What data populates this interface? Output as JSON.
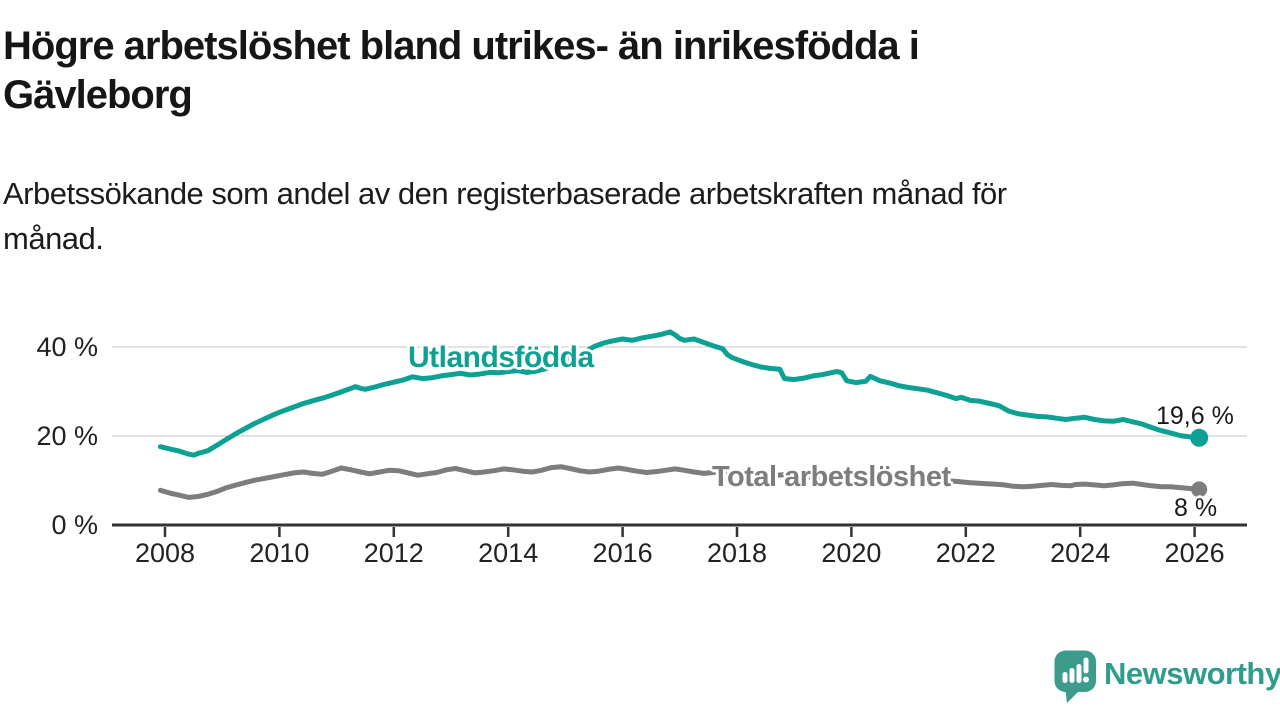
{
  "header": {
    "title_lines": [
      "Högre arbetslöshet bland utrikes- än inrikesfödda i",
      "Gävleborg"
    ],
    "subtitle_lines": [
      "Arbetssökande som andel av den registerbaserade arbetskraften månad för",
      "månad."
    ]
  },
  "chart_data": {
    "type": "line",
    "title": "Högre arbetslöshet bland utrikes- än inrikesfödda i Gävleborg",
    "subtitle": "Arbetssökande som andel av den registerbaserade arbetskraften månad för månad.",
    "unit": "%",
    "grid": "horizontal",
    "legend_position": "inline-labels",
    "x_axis": {
      "range": [
        2007.05,
        2026.95
      ],
      "ticks": [
        2008,
        2010,
        2012,
        2014,
        2016,
        2018,
        2020,
        2022,
        2024,
        2026
      ]
    },
    "y_axis": {
      "range": [
        0,
        46
      ],
      "tick_values": [
        40,
        20,
        0
      ],
      "tick_labels": [
        "40 %",
        "20 %",
        "0 %"
      ],
      "gridlines": [
        40,
        20
      ]
    },
    "colors": {
      "axis": "#333333",
      "grid": "#d9d9d9",
      "text": "#222222"
    },
    "series": [
      {
        "name": "Utlandsfödda",
        "color": "#0ca192",
        "end_label": "19,6 %",
        "end_value": 19.6,
        "points": [
          [
            2007.92,
            17.6
          ],
          [
            2008.08,
            17.1
          ],
          [
            2008.25,
            16.6
          ],
          [
            2008.42,
            15.9
          ],
          [
            2008.5,
            15.7
          ],
          [
            2008.58,
            16.1
          ],
          [
            2008.75,
            16.7
          ],
          [
            2008.92,
            18.0
          ],
          [
            2009.08,
            19.3
          ],
          [
            2009.25,
            20.6
          ],
          [
            2009.42,
            21.8
          ],
          [
            2009.58,
            22.9
          ],
          [
            2009.75,
            23.9
          ],
          [
            2009.92,
            24.9
          ],
          [
            2010.08,
            25.7
          ],
          [
            2010.25,
            26.5
          ],
          [
            2010.42,
            27.3
          ],
          [
            2010.58,
            27.9
          ],
          [
            2010.75,
            28.5
          ],
          [
            2010.92,
            29.2
          ],
          [
            2011.08,
            29.9
          ],
          [
            2011.25,
            30.7
          ],
          [
            2011.33,
            31.1
          ],
          [
            2011.42,
            30.7
          ],
          [
            2011.5,
            30.5
          ],
          [
            2011.67,
            31.0
          ],
          [
            2011.83,
            31.6
          ],
          [
            2012.0,
            32.1
          ],
          [
            2012.17,
            32.6
          ],
          [
            2012.33,
            33.3
          ],
          [
            2012.5,
            32.9
          ],
          [
            2012.67,
            33.1
          ],
          [
            2012.83,
            33.5
          ],
          [
            2013.0,
            33.8
          ],
          [
            2013.17,
            34.1
          ],
          [
            2013.33,
            33.7
          ],
          [
            2013.5,
            33.9
          ],
          [
            2013.67,
            34.3
          ],
          [
            2013.83,
            34.2
          ],
          [
            2014.0,
            34.5
          ],
          [
            2014.17,
            34.7
          ],
          [
            2014.33,
            34.3
          ],
          [
            2014.5,
            34.6
          ],
          [
            2014.67,
            35.2
          ],
          [
            2014.83,
            35.9
          ],
          [
            2015.0,
            36.7
          ],
          [
            2015.17,
            37.7
          ],
          [
            2015.33,
            38.8
          ],
          [
            2015.5,
            40.1
          ],
          [
            2015.67,
            40.9
          ],
          [
            2015.83,
            41.4
          ],
          [
            2016.0,
            41.8
          ],
          [
            2016.17,
            41.5
          ],
          [
            2016.33,
            42.0
          ],
          [
            2016.5,
            42.4
          ],
          [
            2016.67,
            42.8
          ],
          [
            2016.83,
            43.4
          ],
          [
            2016.92,
            42.7
          ],
          [
            2017.0,
            41.9
          ],
          [
            2017.08,
            41.5
          ],
          [
            2017.25,
            41.8
          ],
          [
            2017.42,
            41.0
          ],
          [
            2017.58,
            40.3
          ],
          [
            2017.75,
            39.6
          ],
          [
            2017.83,
            38.3
          ],
          [
            2017.92,
            37.6
          ],
          [
            2018.08,
            36.8
          ],
          [
            2018.25,
            36.1
          ],
          [
            2018.42,
            35.5
          ],
          [
            2018.58,
            35.2
          ],
          [
            2018.75,
            35.0
          ],
          [
            2018.83,
            32.9
          ],
          [
            2019.0,
            32.7
          ],
          [
            2019.17,
            33.0
          ],
          [
            2019.33,
            33.5
          ],
          [
            2019.5,
            33.8
          ],
          [
            2019.67,
            34.3
          ],
          [
            2019.75,
            34.5
          ],
          [
            2019.83,
            34.2
          ],
          [
            2019.92,
            32.4
          ],
          [
            2020.08,
            32.0
          ],
          [
            2020.25,
            32.3
          ],
          [
            2020.33,
            33.4
          ],
          [
            2020.5,
            32.4
          ],
          [
            2020.67,
            31.9
          ],
          [
            2020.83,
            31.3
          ],
          [
            2021.0,
            30.9
          ],
          [
            2021.17,
            30.6
          ],
          [
            2021.33,
            30.3
          ],
          [
            2021.5,
            29.7
          ],
          [
            2021.67,
            29.1
          ],
          [
            2021.83,
            28.4
          ],
          [
            2021.92,
            28.7
          ],
          [
            2022.08,
            28.0
          ],
          [
            2022.25,
            27.8
          ],
          [
            2022.42,
            27.3
          ],
          [
            2022.58,
            26.8
          ],
          [
            2022.75,
            25.6
          ],
          [
            2022.92,
            25.0
          ],
          [
            2023.08,
            24.7
          ],
          [
            2023.25,
            24.4
          ],
          [
            2023.42,
            24.3
          ],
          [
            2023.58,
            24.0
          ],
          [
            2023.75,
            23.7
          ],
          [
            2023.92,
            24.0
          ],
          [
            2024.08,
            24.2
          ],
          [
            2024.25,
            23.7
          ],
          [
            2024.42,
            23.4
          ],
          [
            2024.58,
            23.3
          ],
          [
            2024.75,
            23.7
          ],
          [
            2024.92,
            23.2
          ],
          [
            2025.08,
            22.7
          ],
          [
            2025.25,
            21.9
          ],
          [
            2025.42,
            21.2
          ],
          [
            2025.58,
            20.7
          ],
          [
            2025.75,
            20.1
          ],
          [
            2025.92,
            19.8
          ],
          [
            2026.08,
            19.6
          ]
        ]
      },
      {
        "name": "Total arbetslöshet",
        "color": "#7d7d7d",
        "end_label": "8 %",
        "end_value": 8,
        "points": [
          [
            2007.92,
            7.8
          ],
          [
            2008.08,
            7.2
          ],
          [
            2008.25,
            6.7
          ],
          [
            2008.42,
            6.2
          ],
          [
            2008.58,
            6.4
          ],
          [
            2008.75,
            6.9
          ],
          [
            2008.92,
            7.6
          ],
          [
            2009.08,
            8.4
          ],
          [
            2009.25,
            9.0
          ],
          [
            2009.42,
            9.6
          ],
          [
            2009.58,
            10.1
          ],
          [
            2009.75,
            10.5
          ],
          [
            2009.92,
            10.9
          ],
          [
            2010.08,
            11.3
          ],
          [
            2010.25,
            11.7
          ],
          [
            2010.42,
            11.9
          ],
          [
            2010.58,
            11.6
          ],
          [
            2010.75,
            11.4
          ],
          [
            2010.92,
            12.1
          ],
          [
            2011.08,
            12.8
          ],
          [
            2011.25,
            12.4
          ],
          [
            2011.42,
            11.9
          ],
          [
            2011.58,
            11.5
          ],
          [
            2011.75,
            11.9
          ],
          [
            2011.92,
            12.3
          ],
          [
            2012.08,
            12.2
          ],
          [
            2012.25,
            11.7
          ],
          [
            2012.42,
            11.2
          ],
          [
            2012.58,
            11.5
          ],
          [
            2012.75,
            11.8
          ],
          [
            2012.92,
            12.4
          ],
          [
            2013.08,
            12.7
          ],
          [
            2013.25,
            12.2
          ],
          [
            2013.42,
            11.7
          ],
          [
            2013.58,
            11.9
          ],
          [
            2013.75,
            12.2
          ],
          [
            2013.92,
            12.6
          ],
          [
            2014.08,
            12.4
          ],
          [
            2014.25,
            12.1
          ],
          [
            2014.42,
            11.9
          ],
          [
            2014.58,
            12.3
          ],
          [
            2014.75,
            12.9
          ],
          [
            2014.92,
            13.1
          ],
          [
            2015.08,
            12.7
          ],
          [
            2015.25,
            12.2
          ],
          [
            2015.42,
            11.9
          ],
          [
            2015.58,
            12.1
          ],
          [
            2015.75,
            12.5
          ],
          [
            2015.92,
            12.8
          ],
          [
            2016.08,
            12.5
          ],
          [
            2016.25,
            12.1
          ],
          [
            2016.42,
            11.8
          ],
          [
            2016.58,
            12.0
          ],
          [
            2016.75,
            12.3
          ],
          [
            2016.92,
            12.6
          ],
          [
            2017.08,
            12.3
          ],
          [
            2017.25,
            11.9
          ],
          [
            2017.42,
            11.6
          ],
          [
            2017.58,
            11.8
          ],
          [
            2017.75,
            12.0
          ],
          [
            2017.92,
            12.2
          ],
          [
            2018.08,
            11.9
          ],
          [
            2018.33,
            11.3
          ],
          [
            2018.58,
            11.1
          ],
          [
            2018.83,
            11.3
          ],
          [
            2019.08,
            11.0
          ],
          [
            2019.33,
            10.6
          ],
          [
            2019.58,
            10.4
          ],
          [
            2019.83,
            10.6
          ],
          [
            2020.08,
            10.8
          ],
          [
            2020.33,
            11.3
          ],
          [
            2020.58,
            11.4
          ],
          [
            2020.83,
            11.1
          ],
          [
            2021.08,
            10.7
          ],
          [
            2021.33,
            10.3
          ],
          [
            2021.58,
            10.0
          ],
          [
            2021.83,
            9.8
          ],
          [
            2022.08,
            9.5
          ],
          [
            2022.33,
            9.3
          ],
          [
            2022.5,
            9.2
          ],
          [
            2022.67,
            9.0
          ],
          [
            2022.83,
            8.7
          ],
          [
            2023.0,
            8.6
          ],
          [
            2023.17,
            8.7
          ],
          [
            2023.33,
            8.9
          ],
          [
            2023.5,
            9.1
          ],
          [
            2023.67,
            8.9
          ],
          [
            2023.83,
            8.8
          ],
          [
            2023.92,
            9.1
          ],
          [
            2024.08,
            9.2
          ],
          [
            2024.25,
            9.0
          ],
          [
            2024.42,
            8.8
          ],
          [
            2024.58,
            9.0
          ],
          [
            2024.75,
            9.3
          ],
          [
            2024.92,
            9.4
          ],
          [
            2025.08,
            9.1
          ],
          [
            2025.25,
            8.8
          ],
          [
            2025.42,
            8.6
          ],
          [
            2025.58,
            8.6
          ],
          [
            2025.75,
            8.4
          ],
          [
            2025.92,
            8.2
          ],
          [
            2026.08,
            8.0
          ]
        ]
      }
    ]
  },
  "footer": {
    "brand": "Newsworthy",
    "brand_color": "#2f9c8d"
  }
}
